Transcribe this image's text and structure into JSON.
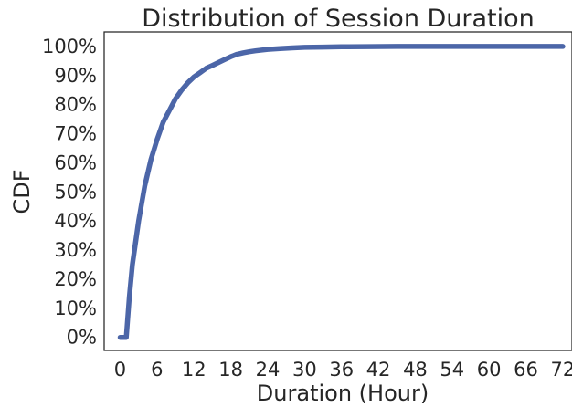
{
  "chart_data": {
    "type": "line",
    "title": "Distribution of Session Duration",
    "xlabel": "Duration (Hour)",
    "ylabel": "CDF",
    "xlim": [
      -2.6,
      73.5
    ],
    "ylim": [
      -0.045,
      1.05
    ],
    "x_ticks": [
      0,
      6,
      12,
      18,
      24,
      30,
      36,
      42,
      48,
      54,
      60,
      66,
      72
    ],
    "x_tick_labels": [
      "0",
      "6",
      "12",
      "18",
      "24",
      "30",
      "36",
      "42",
      "48",
      "54",
      "60",
      "66",
      "72"
    ],
    "y_ticks": [
      0,
      0.1,
      0.2,
      0.3,
      0.4,
      0.5,
      0.6,
      0.7,
      0.8,
      0.9,
      1.0
    ],
    "y_tick_labels": [
      "0%",
      "10%",
      "20%",
      "30%",
      "40%",
      "50%",
      "60%",
      "70%",
      "80%",
      "90%",
      "100%"
    ],
    "grid": false,
    "legend": "none",
    "series": [
      {
        "color": "#4c66a8",
        "x": [
          0,
          1,
          1.5,
          2,
          3,
          4,
          5,
          6,
          7,
          8,
          9,
          10,
          11,
          12,
          13,
          14,
          15,
          16,
          17,
          18,
          19,
          20,
          21,
          22,
          24,
          26,
          28,
          30,
          33,
          36,
          40,
          45,
          50,
          60,
          72
        ],
        "y": [
          0,
          0,
          0.14,
          0.25,
          0.4,
          0.52,
          0.61,
          0.68,
          0.74,
          0.78,
          0.82,
          0.85,
          0.875,
          0.895,
          0.91,
          0.925,
          0.935,
          0.945,
          0.955,
          0.965,
          0.973,
          0.978,
          0.982,
          0.985,
          0.99,
          0.993,
          0.995,
          0.997,
          0.998,
          0.999,
          0.9995,
          1.0,
          1.0,
          1.0,
          1.0
        ]
      }
    ]
  }
}
